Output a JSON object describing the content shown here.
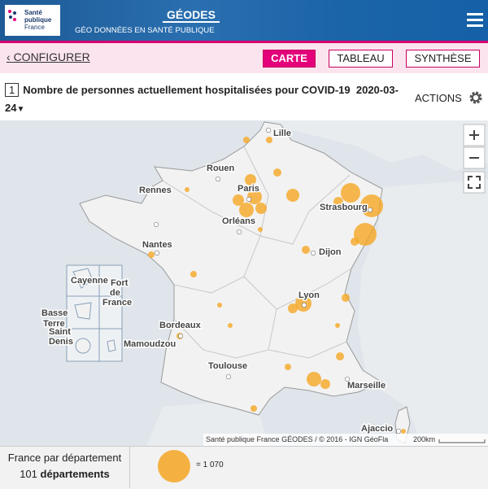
{
  "header": {
    "logo": [
      "Santé",
      "publique",
      "France"
    ],
    "title": "GÉODES",
    "subtitle": "GÉO DONNÉES EN SANTÉ PUBLIQUE"
  },
  "nav": {
    "back": "CONFIGURER",
    "tabs": [
      "CARTE",
      "TABLEAU",
      "SYNTHÈSE"
    ]
  },
  "indicator": {
    "number": "1",
    "title": "Nombre de personnes actuellement hospitalisées pour COVID-19",
    "date": "2020-03-24",
    "actions": "ACTIONS"
  },
  "map": {
    "labels": [
      "Lille",
      "Rouen",
      "Paris",
      "Strasbourg",
      "Rennes",
      "Orléans",
      "Nantes",
      "Dijon",
      "Lyon",
      "Bordeaux",
      "Toulouse",
      "Marseille",
      "Ajaccio",
      "Cayenne",
      "Fort",
      "de",
      "France",
      "Basse",
      "Terre",
      "Saint",
      "Denis",
      "Mamoudzou"
    ],
    "attribution": "Santé publique France GÉODES / © 2016 - IGN GéoFla",
    "scale": "200km"
  },
  "footer": {
    "scope": "France par département",
    "count": "101",
    "unit": "départements",
    "legend": "= 1 070"
  }
}
